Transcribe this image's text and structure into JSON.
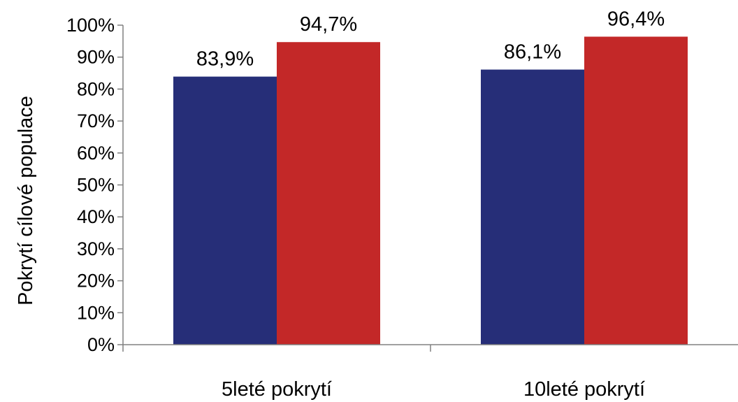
{
  "chart_data": {
    "type": "bar",
    "categories": [
      "5leté pokrytí",
      "10leté pokrytí"
    ],
    "series": [
      {
        "values": [
          83.9,
          86.1
        ],
        "labels": [
          "83,9%",
          "86,1%"
        ],
        "color": "#262E78"
      },
      {
        "values": [
          94.7,
          96.4
        ],
        "labels": [
          "94,7%",
          "96,4%"
        ],
        "color": "#C32828"
      }
    ],
    "ylabel": "Pokrytí cílové populace",
    "ylim": [
      0,
      100
    ],
    "yticks": [
      "0%",
      "10%",
      "20%",
      "30%",
      "40%",
      "50%",
      "60%",
      "70%",
      "80%",
      "90%",
      "100%"
    ],
    "grid": false,
    "legend": "none"
  }
}
